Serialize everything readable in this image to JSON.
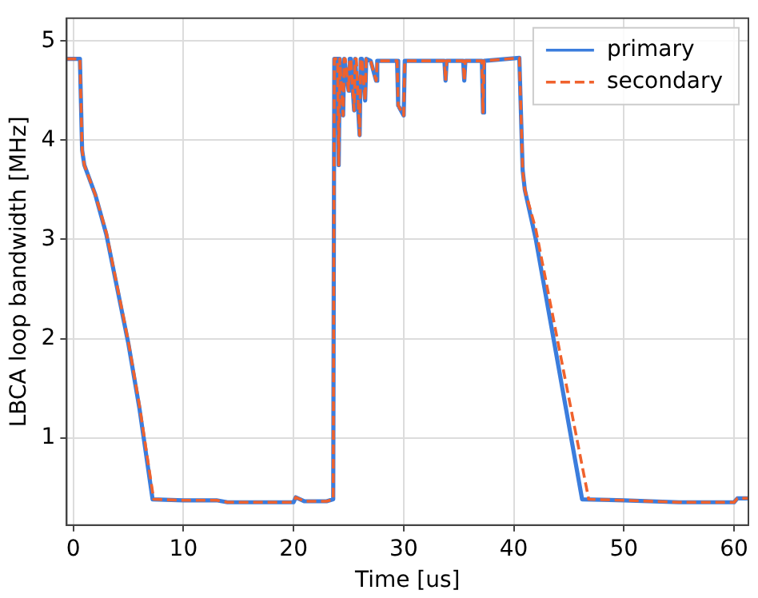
{
  "chart_data": {
    "type": "line",
    "xlabel": "Time [us]",
    "ylabel": "LBCA loop bandwidth [MHz]",
    "xlim": [
      -0.6,
      61.3
    ],
    "xticks": [
      0,
      10,
      20,
      30,
      40,
      50,
      60
    ],
    "ylim": [
      0.12,
      5.23
    ],
    "yticks": [
      1,
      2,
      3,
      4,
      5
    ],
    "grid": true,
    "legend": "top right",
    "marker": "none",
    "series": [
      {
        "name": "primary",
        "color": "#3b7ddd",
        "line_style": "solid",
        "x": [
          -0.6,
          0.6,
          0.8,
          1,
          2,
          3,
          4,
          5,
          6,
          7.2,
          10,
          13,
          14,
          20,
          20.2,
          21,
          23,
          23.6,
          23.7,
          24,
          24.1,
          24.2,
          24.5,
          24.6,
          24.7,
          25,
          25.1,
          25.2,
          25.5,
          25.6,
          25.7,
          26,
          26.1,
          26.2,
          26.5,
          26.6,
          27,
          27.5,
          27.6,
          28,
          29.4,
          29.5,
          30,
          30.1,
          30.5,
          33.7,
          33.8,
          33.9,
          35.4,
          35.5,
          35.6,
          37.1,
          37.2,
          37.3,
          40.5,
          40.8,
          41,
          42,
          46.2,
          50,
          55,
          60,
          60.3,
          61.3
        ],
        "values": [
          4.82,
          4.82,
          3.9,
          3.75,
          3.45,
          3.05,
          2.5,
          1.95,
          1.3,
          0.38,
          0.37,
          0.37,
          0.35,
          0.35,
          0.4,
          0.36,
          0.36,
          0.38,
          4.82,
          4.82,
          3.75,
          4.82,
          4.25,
          4.82,
          4.82,
          4.5,
          4.82,
          4.82,
          4.3,
          4.82,
          4.82,
          4.05,
          4.82,
          4.82,
          4.4,
          4.82,
          4.8,
          4.6,
          4.8,
          4.8,
          4.8,
          4.35,
          4.25,
          4.8,
          4.8,
          4.8,
          4.6,
          4.8,
          4.8,
          4.6,
          4.8,
          4.8,
          4.28,
          4.8,
          4.83,
          3.7,
          3.5,
          3.0,
          0.38,
          0.37,
          0.35,
          0.35,
          0.39,
          0.39
        ]
      },
      {
        "name": "secondary",
        "color": "#f0622d",
        "line_style": "dashed",
        "x": [
          -0.6,
          0.6,
          0.8,
          1,
          2,
          3,
          4,
          5,
          6,
          7.3,
          10,
          13,
          14,
          20,
          20.2,
          21,
          23,
          23.6,
          23.7,
          24,
          24.1,
          24.2,
          24.5,
          24.6,
          24.7,
          25,
          25.1,
          25.2,
          25.5,
          25.6,
          25.7,
          26,
          26.1,
          26.2,
          26.5,
          26.6,
          27,
          27.5,
          27.6,
          28,
          29.4,
          29.5,
          30,
          30.1,
          30.5,
          33.7,
          33.8,
          33.9,
          35.4,
          35.5,
          35.6,
          37.1,
          37.2,
          37.3,
          40.5,
          40.8,
          41,
          42,
          46.8,
          50,
          55,
          60,
          60.3,
          61.3
        ],
        "values": [
          4.82,
          4.82,
          3.9,
          3.75,
          3.45,
          3.07,
          2.52,
          1.97,
          1.33,
          0.38,
          0.37,
          0.37,
          0.35,
          0.35,
          0.4,
          0.36,
          0.36,
          0.38,
          4.82,
          4.82,
          3.75,
          4.82,
          4.25,
          4.82,
          4.82,
          4.5,
          4.82,
          4.82,
          4.3,
          4.82,
          4.82,
          4.05,
          4.82,
          4.82,
          4.4,
          4.82,
          4.8,
          4.6,
          4.8,
          4.8,
          4.8,
          4.35,
          4.25,
          4.8,
          4.8,
          4.8,
          4.6,
          4.8,
          4.8,
          4.6,
          4.8,
          4.8,
          4.28,
          4.8,
          4.83,
          3.7,
          3.5,
          3.1,
          0.38,
          0.37,
          0.35,
          0.35,
          0.39,
          0.39
        ]
      }
    ]
  }
}
